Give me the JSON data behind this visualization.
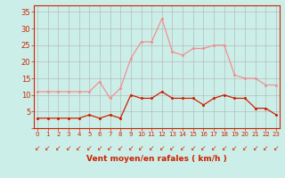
{
  "xlabel": "Vent moyen/en rafales ( km/h )",
  "hours": [
    0,
    1,
    2,
    3,
    4,
    5,
    6,
    7,
    8,
    9,
    10,
    11,
    12,
    13,
    14,
    15,
    16,
    17,
    18,
    19,
    20,
    21,
    22,
    23
  ],
  "avg_wind": [
    3,
    3,
    3,
    3,
    3,
    4,
    3,
    4,
    3,
    10,
    9,
    9,
    11,
    9,
    9,
    9,
    7,
    9,
    10,
    9,
    9,
    6,
    6,
    4
  ],
  "gust_wind": [
    11,
    11,
    11,
    11,
    11,
    11,
    14,
    9,
    12,
    21,
    26,
    26,
    33,
    23,
    22,
    24,
    24,
    25,
    25,
    16,
    15,
    15,
    13,
    13
  ],
  "bg_color": "#cceee8",
  "grid_color": "#b0b0b0",
  "avg_color": "#cc2200",
  "gust_color": "#f09090",
  "ylim": [
    0,
    37
  ],
  "xlim": [
    -0.3,
    23.3
  ],
  "ytick_labels": [
    "",
    "5",
    "10",
    "15",
    "20",
    "25",
    "30",
    "35"
  ],
  "ytick_vals": [
    0,
    5,
    10,
    15,
    20,
    25,
    30,
    35
  ]
}
